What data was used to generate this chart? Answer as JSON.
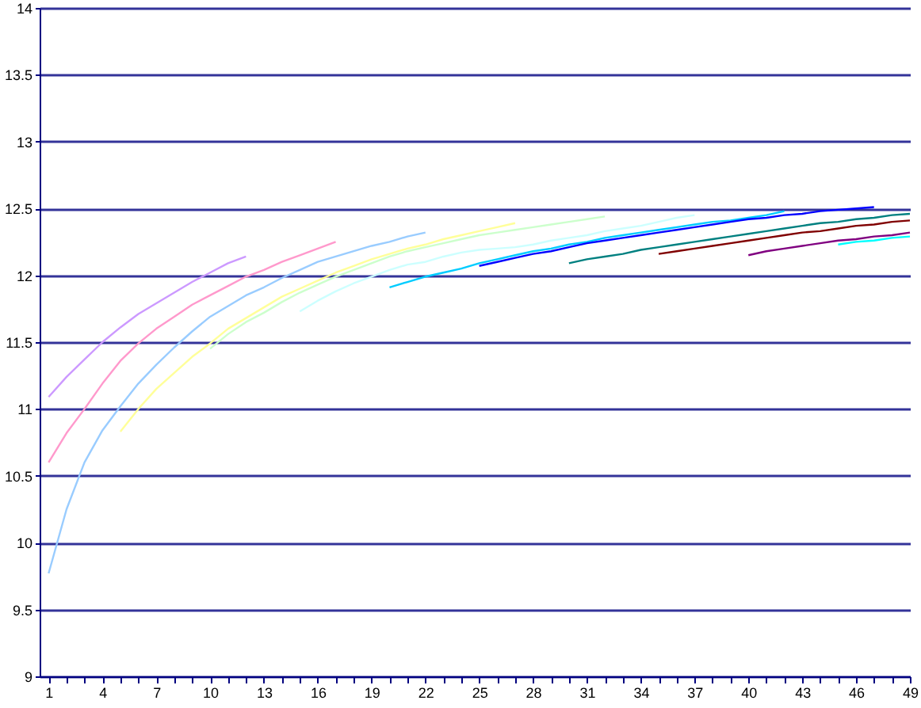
{
  "chart_data": {
    "type": "line",
    "xlim": [
      0.5,
      49
    ],
    "ylim": [
      9,
      14
    ],
    "yticks": [
      9,
      9.5,
      10,
      10.5,
      11,
      11.5,
      12,
      12.5,
      13,
      13.5,
      14
    ],
    "xticks": [
      1,
      {
        "value": 2,
        "label": null
      },
      {
        "value": 3,
        "label": null
      },
      4,
      {
        "value": 5,
        "label": null
      },
      {
        "value": 6,
        "label": null
      },
      7,
      {
        "value": 8,
        "label": null
      },
      {
        "value": 9,
        "label": null
      },
      10,
      {
        "value": 11,
        "label": null
      },
      {
        "value": 12,
        "label": null
      },
      13,
      {
        "value": 14,
        "label": null
      },
      {
        "value": 15,
        "label": null
      },
      16,
      {
        "value": 17,
        "label": null
      },
      {
        "value": 18,
        "label": null
      },
      19,
      {
        "value": 20,
        "label": null
      },
      {
        "value": 21,
        "label": null
      },
      22,
      {
        "value": 23,
        "label": null
      },
      {
        "value": 24,
        "label": null
      },
      25,
      {
        "value": 26,
        "label": null
      },
      {
        "value": 27,
        "label": null
      },
      28,
      {
        "value": 29,
        "label": null
      },
      {
        "value": 30,
        "label": null
      },
      31,
      {
        "value": 32,
        "label": null
      },
      {
        "value": 33,
        "label": null
      },
      34,
      {
        "value": 35,
        "label": null
      },
      {
        "value": 36,
        "label": null
      },
      37,
      {
        "value": 38,
        "label": null
      },
      {
        "value": 39,
        "label": null
      },
      40,
      {
        "value": 41,
        "label": null
      },
      {
        "value": 42,
        "label": null
      },
      43,
      {
        "value": 44,
        "label": null
      },
      {
        "value": 45,
        "label": null
      },
      46,
      {
        "value": 47,
        "label": null
      },
      {
        "value": 48,
        "label": null
      },
      49
    ],
    "grid": "y",
    "marker": "none",
    "line_style": "solid",
    "series": [
      {
        "color": "#cc99ff",
        "x": [
          1,
          2,
          3,
          4,
          5,
          6,
          7,
          8,
          9,
          10,
          11,
          12
        ],
        "values": [
          11.09,
          11.24,
          11.37,
          11.5,
          11.61,
          11.71,
          11.79,
          11.87,
          11.95,
          12.02,
          12.09,
          12.14
        ]
      },
      {
        "color": "#ff99cc",
        "x": [
          1,
          2,
          3,
          4,
          5,
          6,
          7,
          8,
          9,
          10,
          11,
          12,
          13,
          14,
          15,
          16,
          17
        ],
        "values": [
          10.6,
          10.82,
          11.0,
          11.19,
          11.36,
          11.49,
          11.6,
          11.69,
          11.78,
          11.85,
          11.92,
          11.99,
          12.04,
          12.1,
          12.15,
          12.2,
          12.25
        ]
      },
      {
        "color": "#99ccff",
        "x": [
          1,
          2,
          3,
          4,
          5,
          6,
          7,
          8,
          9,
          10,
          11,
          12,
          13,
          14,
          15,
          16,
          17,
          18,
          19,
          20,
          21,
          22
        ],
        "values": [
          9.77,
          10.25,
          10.6,
          10.84,
          11.02,
          11.19,
          11.33,
          11.46,
          11.58,
          11.69,
          11.77,
          11.85,
          11.91,
          11.98,
          12.04,
          12.1,
          12.14,
          12.18,
          12.22,
          12.25,
          12.29,
          12.32
        ]
      },
      {
        "color": "#ffff99",
        "x": [
          5,
          6,
          7,
          8,
          9,
          10,
          11,
          12,
          13,
          14,
          15,
          16,
          17,
          18,
          19,
          20,
          21,
          22,
          23,
          24,
          25,
          26,
          27
        ],
        "values": [
          10.83,
          11.0,
          11.15,
          11.27,
          11.39,
          11.49,
          11.6,
          11.68,
          11.76,
          11.84,
          11.9,
          11.96,
          12.02,
          12.07,
          12.12,
          12.16,
          12.2,
          12.23,
          12.27,
          12.3,
          12.33,
          12.36,
          12.39
        ]
      },
      {
        "color": "#ccffcc",
        "x": [
          10,
          11,
          12,
          13,
          14,
          15,
          16,
          17,
          18,
          19,
          20,
          21,
          22,
          23,
          24,
          25,
          26,
          27,
          28,
          29,
          30,
          31,
          32
        ],
        "values": [
          11.45,
          11.56,
          11.65,
          11.72,
          11.8,
          11.87,
          11.93,
          11.99,
          12.04,
          12.09,
          12.14,
          12.18,
          12.21,
          12.24,
          12.27,
          12.3,
          12.32,
          12.34,
          12.36,
          12.38,
          12.4,
          12.42,
          12.44
        ]
      },
      {
        "color": "#ccffff",
        "x": [
          15,
          16,
          17,
          18,
          19,
          20,
          21,
          22,
          23,
          24,
          25,
          26,
          27,
          28,
          29,
          30,
          31,
          32,
          33,
          34,
          35,
          36,
          37
        ],
        "values": [
          11.73,
          11.81,
          11.88,
          11.94,
          11.99,
          12.04,
          12.08,
          12.1,
          12.14,
          12.17,
          12.19,
          12.2,
          12.21,
          12.23,
          12.26,
          12.28,
          12.3,
          12.33,
          12.35,
          12.37,
          12.4,
          12.43,
          12.45
        ]
      },
      {
        "color": "#00ccff",
        "x": [
          20,
          21,
          22,
          23,
          24,
          25,
          26,
          27,
          28,
          29,
          30,
          31,
          32,
          33,
          34,
          35,
          36,
          37,
          38,
          39,
          40,
          41,
          42
        ],
        "values": [
          11.91,
          11.95,
          11.99,
          12.02,
          12.05,
          12.09,
          12.12,
          12.15,
          12.18,
          12.2,
          12.23,
          12.25,
          12.28,
          12.3,
          12.32,
          12.34,
          12.36,
          12.38,
          12.4,
          12.41,
          12.43,
          12.45,
          12.48
        ]
      },
      {
        "color": "#0000ff",
        "x": [
          25,
          26,
          27,
          28,
          29,
          30,
          31,
          32,
          33,
          34,
          35,
          36,
          37,
          38,
          39,
          40,
          41,
          42,
          43,
          44,
          45,
          46,
          47
        ],
        "values": [
          12.07,
          12.1,
          12.13,
          12.16,
          12.18,
          12.21,
          12.24,
          12.26,
          12.28,
          12.3,
          12.32,
          12.34,
          12.36,
          12.38,
          12.4,
          12.42,
          12.43,
          12.45,
          12.46,
          12.48,
          12.49,
          12.5,
          12.51
        ]
      },
      {
        "color": "#008080",
        "x": [
          30,
          31,
          32,
          33,
          34,
          35,
          36,
          37,
          38,
          39,
          40,
          41,
          42,
          43,
          44,
          45,
          46,
          47,
          48,
          49
        ],
        "values": [
          12.09,
          12.12,
          12.14,
          12.16,
          12.19,
          12.21,
          12.23,
          12.25,
          12.27,
          12.29,
          12.31,
          12.33,
          12.35,
          12.37,
          12.39,
          12.4,
          12.42,
          12.43,
          12.45,
          12.46
        ]
      },
      {
        "color": "#800000",
        "x": [
          35,
          36,
          37,
          38,
          39,
          40,
          41,
          42,
          43,
          44,
          45,
          46,
          47,
          48,
          49
        ],
        "values": [
          12.16,
          12.18,
          12.2,
          12.22,
          12.24,
          12.26,
          12.28,
          12.3,
          12.32,
          12.33,
          12.35,
          12.37,
          12.38,
          12.4,
          12.41
        ]
      },
      {
        "color": "#800080",
        "x": [
          40,
          41,
          42,
          43,
          44,
          45,
          46,
          47,
          48,
          49
        ],
        "values": [
          12.15,
          12.18,
          12.2,
          12.22,
          12.24,
          12.26,
          12.27,
          12.29,
          12.3,
          12.32
        ]
      },
      {
        "color": "#00ffff",
        "x": [
          45,
          46,
          47,
          48,
          49
        ],
        "values": [
          12.23,
          12.25,
          12.26,
          12.28,
          12.29
        ]
      }
    ]
  }
}
